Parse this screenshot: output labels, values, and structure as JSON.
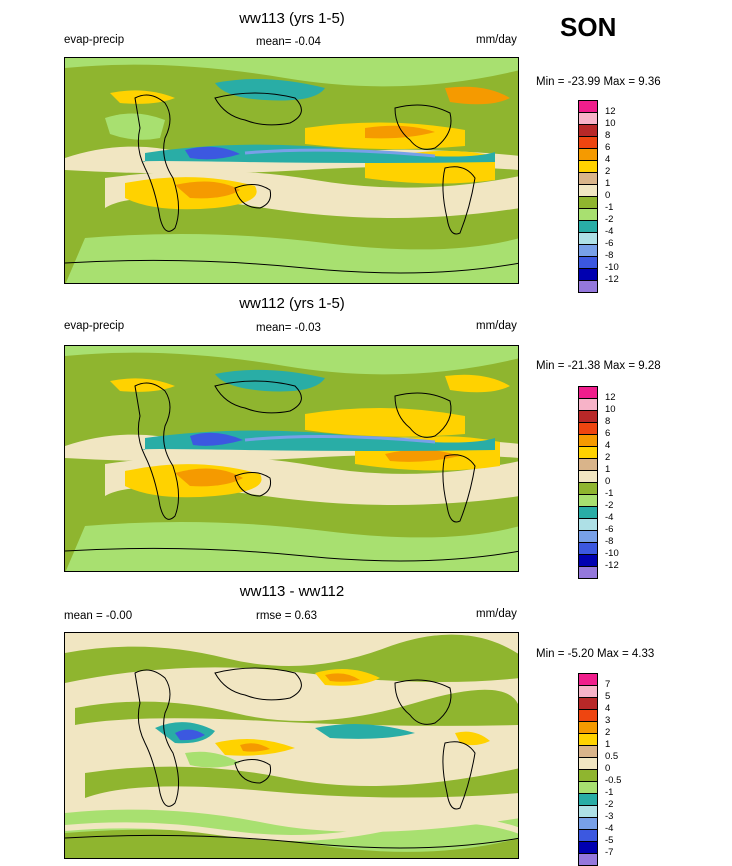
{
  "season": "SON",
  "panels": [
    {
      "title": "ww113 (yrs 1-5)",
      "left_label": "evap-precip",
      "center_label": "mean=  -0.04",
      "right_label": "mm/day",
      "range_label": "Min = -23.99 Max =   9.36",
      "legend": {
        "colors": [
          "#f01e8c",
          "#f7b3c8",
          "#b82828",
          "#ee4510",
          "#f59a00",
          "#ffd200",
          "#d9b48a",
          "#f1e6c2",
          "#8fb52f",
          "#a8e070",
          "#29ada6",
          "#aee0e6",
          "#78a0e8",
          "#3c58e0",
          "#0000b0",
          "#9478dc"
        ],
        "labels": [
          "12",
          "10",
          "8",
          "6",
          "4",
          "2",
          "1",
          "0",
          "-1",
          "-2",
          "-4",
          "-6",
          "-8",
          "-10",
          "-12"
        ]
      }
    },
    {
      "title": "ww112 (yrs 1-5)",
      "left_label": "evap-precip",
      "center_label": "mean=  -0.03",
      "right_label": "mm/day",
      "range_label": "Min = -21.38 Max =   9.28",
      "legend": {
        "colors": [
          "#f01e8c",
          "#f7b3c8",
          "#b82828",
          "#ee4510",
          "#f59a00",
          "#ffd200",
          "#d9b48a",
          "#f1e6c2",
          "#8fb52f",
          "#a8e070",
          "#29ada6",
          "#aee0e6",
          "#78a0e8",
          "#3c58e0",
          "#0000b0",
          "#9478dc"
        ],
        "labels": [
          "12",
          "10",
          "8",
          "6",
          "4",
          "2",
          "1",
          "0",
          "-1",
          "-2",
          "-4",
          "-6",
          "-8",
          "-10",
          "-12"
        ]
      }
    },
    {
      "title": "ww113 - ww112",
      "left_label": "mean =  -0.00",
      "center_label": "rmse =   0.63",
      "right_label": "mm/day",
      "range_label": "Min =  -5.20 Max =   4.33",
      "legend": {
        "colors": [
          "#f01e8c",
          "#f7b3c8",
          "#b82828",
          "#ee4510",
          "#f59a00",
          "#ffd200",
          "#d9b48a",
          "#f1e6c2",
          "#8fb52f",
          "#a8e070",
          "#29ada6",
          "#aee0e6",
          "#78a0e8",
          "#3c58e0",
          "#0000b0",
          "#9478dc"
        ],
        "labels": [
          "7",
          "5",
          "4",
          "3",
          "2",
          "1",
          "0.5",
          "0",
          "-0.5",
          "-1",
          "-2",
          "-3",
          "-4",
          "-5",
          "-7"
        ]
      }
    }
  ]
}
